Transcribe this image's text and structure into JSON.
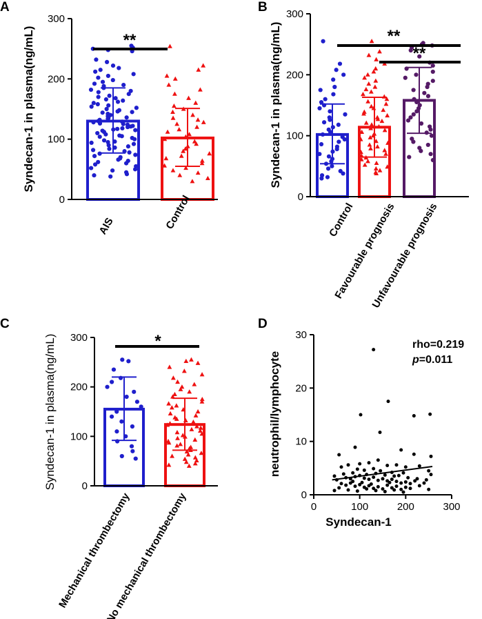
{
  "chart_data": [
    {
      "panel": "A",
      "type": "bar",
      "ylabel": "Syndecan-1 in plasma(ng/mL)",
      "ylim": [
        0,
        300
      ],
      "yticks": [
        "0",
        "100",
        "200",
        "300"
      ],
      "categories": [
        "AIS",
        "Control"
      ],
      "series": [
        {
          "name": "AIS",
          "mean": 130,
          "sd_low": 77,
          "sd_high": 185,
          "color": "#1f1fcc",
          "marker": "circle",
          "points": [
            255,
            252,
            250,
            248,
            246,
            232,
            228,
            222,
            218,
            215,
            212,
            208,
            205,
            202,
            198,
            195,
            192,
            190,
            188,
            185,
            182,
            180,
            178,
            175,
            172,
            170,
            168,
            166,
            164,
            162,
            160,
            158,
            156,
            154,
            152,
            150,
            148,
            146,
            145,
            144,
            142,
            140,
            138,
            136,
            135,
            134,
            132,
            130,
            129,
            128,
            126,
            125,
            124,
            122,
            121,
            120,
            118,
            117,
            116,
            115,
            114,
            112,
            110,
            108,
            106,
            105,
            104,
            102,
            100,
            98,
            96,
            95,
            94,
            92,
            90,
            88,
            86,
            84,
            82,
            80,
            78,
            76,
            74,
            72,
            70,
            68,
            66,
            64,
            62,
            60,
            58,
            55,
            52,
            50,
            48,
            45,
            42,
            40,
            38
          ]
        },
        {
          "name": "Control",
          "mean": 102,
          "sd_low": 55,
          "sd_high": 151,
          "color": "#ee1111",
          "marker": "triangle",
          "points": [
            254,
            222,
            215,
            205,
            200,
            190,
            182,
            175,
            168,
            160,
            155,
            150,
            145,
            140,
            135,
            132,
            128,
            125,
            120,
            116,
            112,
            108,
            104,
            100,
            96,
            92,
            88,
            84,
            80,
            76,
            72,
            68,
            64,
            60,
            56,
            52,
            48,
            44,
            40,
            35,
            30
          ]
        }
      ],
      "annotation": "**"
    },
    {
      "panel": "B",
      "type": "bar",
      "ylabel": "Syndecan-1 in plasma(ng/mL)",
      "ylim": [
        0,
        300
      ],
      "yticks": [
        "0",
        "100",
        "200",
        "300"
      ],
      "categories": [
        "Control",
        "Favourable prognosis",
        "Unfavourable prognosis"
      ],
      "series": [
        {
          "name": "Control",
          "mean": 102,
          "sd_low": 54,
          "sd_high": 152,
          "color": "#1f1fcc",
          "marker": "circle",
          "points": [
            255,
            218,
            208,
            200,
            192,
            180,
            175,
            168,
            160,
            155,
            150,
            145,
            140,
            135,
            130,
            126,
            122,
            118,
            114,
            110,
            106,
            102,
            98,
            94,
            90,
            86,
            82,
            78,
            74,
            70,
            66,
            62,
            58,
            54,
            50,
            46,
            42,
            38,
            35,
            32,
            30
          ]
        },
        {
          "name": "Favourable prognosis",
          "mean": 114,
          "sd_low": 65,
          "sd_high": 163,
          "color": "#ee1111",
          "marker": "triangle",
          "points": [
            255,
            238,
            232,
            225,
            218,
            210,
            205,
            200,
            195,
            190,
            185,
            180,
            176,
            172,
            168,
            164,
            160,
            156,
            152,
            148,
            145,
            142,
            139,
            136,
            133,
            130,
            127,
            124,
            121,
            118,
            115,
            112,
            109,
            106,
            103,
            100,
            97,
            94,
            91,
            88,
            85,
            82,
            79,
            76,
            73,
            70,
            67,
            64,
            61,
            58,
            55,
            52,
            49,
            46,
            43,
            40,
            38
          ]
        },
        {
          "name": "Unfavourable prognosis",
          "mean": 158,
          "sd_low": 104,
          "sd_high": 212,
          "color": "#551a66",
          "marker": "circle",
          "points": [
            252,
            250,
            248,
            245,
            240,
            230,
            220,
            215,
            210,
            205,
            200,
            195,
            190,
            185,
            180,
            175,
            170,
            165,
            160,
            155,
            150,
            145,
            140,
            135,
            130,
            125,
            120,
            115,
            110,
            105,
            100,
            95,
            90,
            85,
            80,
            75,
            70,
            65,
            60
          ]
        }
      ],
      "annotations": [
        "**",
        "**"
      ]
    },
    {
      "panel": "C",
      "type": "bar",
      "ylabel": "Syndecan-1 in plasma(ng/mL)",
      "ylim": [
        0,
        300
      ],
      "yticks": [
        "0",
        "100",
        "200",
        "300"
      ],
      "categories": [
        "Mechanical thrombectomy",
        "No mechanical thrombectomy"
      ],
      "series": [
        {
          "name": "Mechanical thrombectomy",
          "mean": 155,
          "sd_low": 92,
          "sd_high": 220,
          "color": "#1f1fcc",
          "marker": "circle",
          "points": [
            255,
            252,
            235,
            218,
            210,
            200,
            190,
            180,
            170,
            160,
            150,
            140,
            130,
            120,
            110,
            100,
            90,
            80,
            70,
            60,
            55
          ]
        },
        {
          "name": "No mechanical thrombectomy",
          "mean": 124,
          "sd_low": 72,
          "sd_high": 177,
          "color": "#ee1111",
          "marker": "triangle",
          "points": [
            255,
            252,
            248,
            240,
            232,
            225,
            218,
            210,
            205,
            200,
            195,
            190,
            185,
            180,
            175,
            170,
            166,
            162,
            158,
            154,
            150,
            146,
            142,
            138,
            135,
            132,
            129,
            126,
            123,
            120,
            117,
            114,
            111,
            108,
            105,
            102,
            99,
            96,
            93,
            90,
            87,
            84,
            81,
            78,
            75,
            72,
            69,
            66,
            63,
            60,
            57,
            54,
            51,
            48,
            45,
            42,
            40
          ]
        }
      ],
      "annotation": "*"
    },
    {
      "panel": "D",
      "type": "scatter",
      "xlabel": "Syndecan-1",
      "ylabel": "neutrophil/lymphocyte",
      "xlim": [
        0,
        300
      ],
      "ylim": [
        0,
        30
      ],
      "xticks": [
        "0",
        "100",
        "200",
        "300"
      ],
      "yticks": [
        "0",
        "10",
        "20",
        "30"
      ],
      "stat_rho": "rho=0.219",
      "stat_p_symbol": "p",
      "stat_p_value": "=0.011",
      "trend": {
        "x0": 40,
        "y0": 2.8,
        "x1": 258,
        "y1": 5.3
      },
      "points": [
        [
          130,
          27.2
        ],
        [
          162,
          17.5
        ],
        [
          253,
          15.1
        ],
        [
          218,
          14.8
        ],
        [
          102,
          15.0
        ],
        [
          144,
          11.7
        ],
        [
          190,
          8.4
        ],
        [
          218,
          7.6
        ],
        [
          55,
          7.5
        ],
        [
          90,
          8.9
        ],
        [
          255,
          7.2
        ],
        [
          140,
          6.5
        ],
        [
          120,
          6.0
        ],
        [
          100,
          5.8
        ],
        [
          75,
          5.6
        ],
        [
          60,
          5.2
        ],
        [
          160,
          5.5
        ],
        [
          180,
          5.6
        ],
        [
          200,
          5.2
        ],
        [
          230,
          5.4
        ],
        [
          250,
          4.5
        ],
        [
          95,
          4.8
        ],
        [
          110,
          4.6
        ],
        [
          130,
          4.9
        ],
        [
          145,
          4.5
        ],
        [
          170,
          4.2
        ],
        [
          85,
          4.1
        ],
        [
          65,
          3.9
        ],
        [
          45,
          3.5
        ],
        [
          50,
          2.8
        ],
        [
          70,
          3.2
        ],
        [
          80,
          3.0
        ],
        [
          90,
          3.4
        ],
        [
          100,
          3.6
        ],
        [
          110,
          3.1
        ],
        [
          120,
          2.9
        ],
        [
          130,
          3.3
        ],
        [
          140,
          2.7
        ],
        [
          150,
          3.0
        ],
        [
          160,
          2.6
        ],
        [
          170,
          2.9
        ],
        [
          180,
          2.5
        ],
        [
          190,
          2.2
        ],
        [
          200,
          2.4
        ],
        [
          210,
          2.1
        ],
        [
          220,
          2.6
        ],
        [
          240,
          2.2
        ],
        [
          255,
          3.8
        ],
        [
          60,
          2.1
        ],
        [
          70,
          1.8
        ],
        [
          80,
          2.2
        ],
        [
          90,
          1.6
        ],
        [
          100,
          1.9
        ],
        [
          110,
          1.4
        ],
        [
          120,
          1.7
        ],
        [
          130,
          1.2
        ],
        [
          140,
          1.5
        ],
        [
          150,
          1.1
        ],
        [
          160,
          1.8
        ],
        [
          170,
          1.3
        ],
        [
          180,
          1.6
        ],
        [
          190,
          1.0
        ],
        [
          200,
          1.4
        ],
        [
          210,
          1.2
        ],
        [
          230,
          1.7
        ],
        [
          250,
          1.0
        ],
        [
          55,
          1.3
        ],
        [
          75,
          0.9
        ],
        [
          95,
          0.7
        ],
        [
          115,
          1.1
        ],
        [
          135,
          0.8
        ],
        [
          155,
          0.6
        ],
        [
          175,
          0.9
        ],
        [
          195,
          0.5
        ],
        [
          45,
          0.8
        ],
        [
          85,
          2.5
        ],
        [
          105,
          2.3
        ],
        [
          125,
          2.0
        ],
        [
          165,
          2.3
        ],
        [
          185,
          3.6
        ],
        [
          205,
          3.2
        ],
        [
          225,
          3.0
        ],
        [
          245,
          2.8
        ],
        [
          115,
          3.8
        ],
        [
          135,
          4.0
        ],
        [
          155,
          3.7
        ],
        [
          175,
          3.5
        ],
        [
          195,
          4.1
        ]
      ]
    }
  ]
}
